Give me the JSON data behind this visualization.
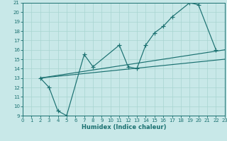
{
  "xlabel": "Humidex (Indice chaleur)",
  "bg_color": "#c8e8e8",
  "line_color": "#1a7070",
  "grid_color": "#a8d4d0",
  "xlim": [
    0,
    23
  ],
  "ylim": [
    9,
    21
  ],
  "xticks": [
    0,
    1,
    2,
    3,
    4,
    5,
    6,
    7,
    8,
    9,
    10,
    11,
    12,
    13,
    14,
    15,
    16,
    17,
    18,
    19,
    20,
    21,
    22,
    23
  ],
  "yticks": [
    9,
    10,
    11,
    12,
    13,
    14,
    15,
    16,
    17,
    18,
    19,
    20,
    21
  ],
  "curve_x": [
    2,
    3,
    4,
    5,
    7,
    8,
    11,
    12,
    13,
    14,
    15,
    16,
    17,
    19,
    20,
    22
  ],
  "curve_y": [
    13,
    12,
    9.5,
    9.0,
    15.5,
    14.2,
    16.5,
    14.2,
    14.0,
    16.5,
    17.8,
    18.5,
    19.5,
    21.0,
    20.8,
    16.0
  ],
  "line2_x": [
    2,
    23
  ],
  "line2_y": [
    13,
    16.0
  ],
  "line3_x": [
    2,
    23
  ],
  "line3_y": [
    13,
    15.0
  ]
}
